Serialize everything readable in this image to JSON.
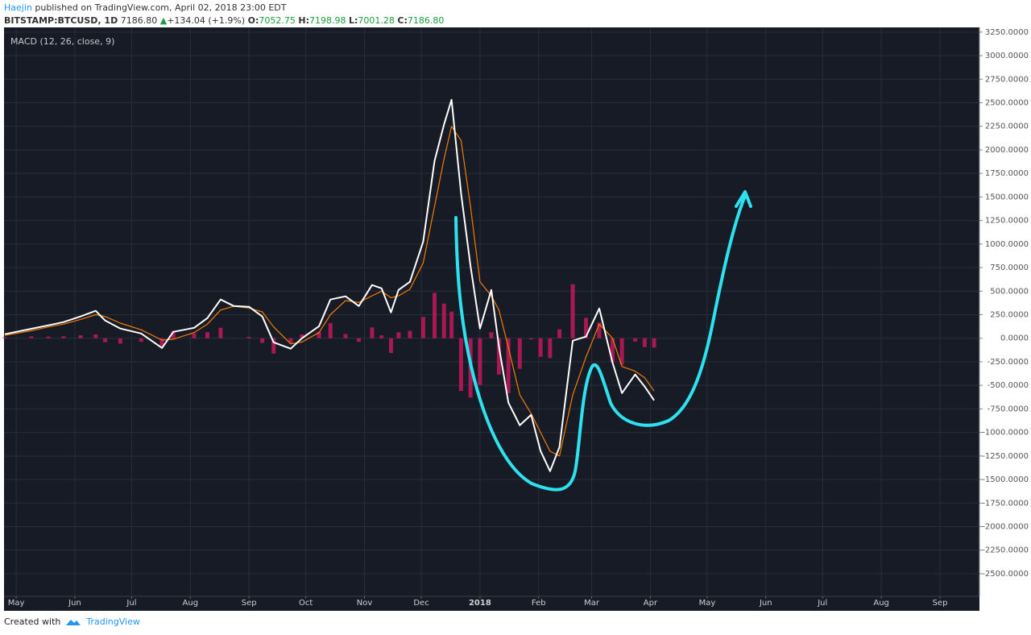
{
  "header": {
    "author": "Haejin",
    "published": "published on TradingView.com, April 02, 2018 23:00 EDT",
    "symbol": "BITSTAMP:BTCUSD, 1D",
    "last": "7186.80",
    "arrow": "▲",
    "change": "+134.04 (+1.9%)",
    "open_label": "O:",
    "open": "7052.75",
    "high_label": "H:",
    "high": "7198.98",
    "low_label": "L:",
    "low": "7001.28",
    "close_label": "C:",
    "close": "7186.80"
  },
  "chart_data": {
    "type": "line",
    "title": "MACD (12, 26, close, 9)",
    "x": [
      -6,
      8,
      17,
      25,
      34,
      42,
      47,
      55,
      66,
      77,
      83,
      94,
      101,
      108,
      115,
      123,
      130,
      136,
      145,
      151,
      160,
      166,
      174,
      181,
      188,
      193,
      198,
      202,
      208,
      215,
      221,
      226,
      230,
      235,
      240,
      245,
      251,
      255,
      260,
      266,
      272,
      277,
      282,
      287,
      294,
      301,
      308,
      315,
      320,
      327,
      332,
      337
    ],
    "series": [
      {
        "type": "histogram",
        "color": "#c2185b",
        "values": [
          10,
          20,
          17,
          21,
          31,
          41,
          -42,
          -57,
          -39,
          -83,
          78,
          51,
          64,
          111,
          2,
          14,
          -49,
          -163,
          -51,
          40,
          68,
          161,
          45,
          -38,
          115,
          30,
          -156,
          63,
          79,
          226,
          482,
          367,
          282,
          -560,
          -630,
          -497,
          63,
          -386,
          -584,
          -324,
          -13,
          -197,
          -211,
          95,
          574,
          217,
          166,
          -257,
          -282,
          -35,
          -93,
          -99
        ]
      },
      {
        "type": "line",
        "color": "#f57c00",
        "values": [
          30,
          80,
          120,
          150,
          200,
          250,
          230,
          160,
          90,
          -20,
          -10,
          60,
          150,
          300,
          340,
          320,
          280,
          120,
          -60,
          -40,
          60,
          250,
          400,
          380,
          450,
          500,
          430,
          450,
          520,
          800,
          1400,
          1900,
          2250,
          2100,
          1400,
          600,
          450,
          300,
          -100,
          -600,
          -800,
          -1000,
          -1200,
          -1250,
          -600,
          -200,
          150,
          0,
          -300,
          -350,
          -420,
          -560
        ]
      },
      {
        "type": "line",
        "color": "#ffffff",
        "values": [
          43,
          100,
          137,
          171,
          231,
          291,
          188,
          103,
          51,
          -103,
          68,
          111,
          214,
          411,
          342,
          334,
          231,
          -43,
          -111,
          0,
          128,
          411,
          445,
          342,
          565,
          530,
          274,
          513,
          599,
          1026,
          1882,
          2267,
          2532,
          1540,
          770,
          103,
          513,
          -86,
          -684,
          -924,
          -813,
          -1197,
          -1411,
          -1155,
          -26,
          17,
          316,
          -257,
          -582,
          -385,
          -513,
          -659
        ]
      }
    ],
    "xlim": [
      -6,
      508
    ],
    "ylim": [
      -2740,
      3300
    ],
    "xticks": [
      {
        "value": 0,
        "label": "May"
      },
      {
        "value": 31,
        "label": "Jun"
      },
      {
        "value": 61,
        "label": "Jul"
      },
      {
        "value": 92,
        "label": "Aug"
      },
      {
        "value": 123,
        "label": "Sep"
      },
      {
        "value": 153,
        "label": "Oct"
      },
      {
        "value": 184,
        "label": "Nov"
      },
      {
        "value": 214,
        "label": "Dec"
      },
      {
        "value": 245,
        "label": "2018"
      },
      {
        "value": 276,
        "label": "Feb"
      },
      {
        "value": 304,
        "label": "Mar"
      },
      {
        "value": 335,
        "label": "Apr"
      },
      {
        "value": 365,
        "label": "May"
      },
      {
        "value": 396,
        "label": "Jun"
      },
      {
        "value": 426,
        "label": "Jul"
      },
      {
        "value": 457,
        "label": "Aug"
      },
      {
        "value": 488,
        "label": "Sep"
      }
    ],
    "yticks": [
      {
        "value": 3250,
        "label": "3250.0000"
      },
      {
        "value": 3000,
        "label": "3000.0000"
      },
      {
        "value": 2750,
        "label": "2750.0000"
      },
      {
        "value": 2500,
        "label": "2500.0000"
      },
      {
        "value": 2250,
        "label": "2250.0000"
      },
      {
        "value": 2000,
        "label": "2000.0000"
      },
      {
        "value": 1750,
        "label": "1750.0000"
      },
      {
        "value": 1500,
        "label": "1500.0000"
      },
      {
        "value": 1250,
        "label": "1250.0000"
      },
      {
        "value": 1000,
        "label": "1000.0000"
      },
      {
        "value": 750,
        "label": "750.0000"
      },
      {
        "value": 500,
        "label": "500.0000"
      },
      {
        "value": 250,
        "label": "250.0000"
      },
      {
        "value": 0,
        "label": "0.0000"
      },
      {
        "value": -250,
        "label": "-250.0000"
      },
      {
        "value": -500,
        "label": "-500.0000"
      },
      {
        "value": -750,
        "label": "-750.0000"
      },
      {
        "value": -1000,
        "label": "-1000.0000"
      },
      {
        "value": -1250,
        "label": "-1250.0000"
      },
      {
        "value": -1500,
        "label": "-1500.0000"
      },
      {
        "value": -1750,
        "label": "-1750.0000"
      },
      {
        "value": -2000,
        "label": "-2000.0000"
      },
      {
        "value": -2250,
        "label": "-2250.0000"
      },
      {
        "value": -2500,
        "label": "-2500.0000"
      }
    ],
    "grid": true
  },
  "footer": {
    "created": "Created with",
    "brand": "TradingView"
  }
}
